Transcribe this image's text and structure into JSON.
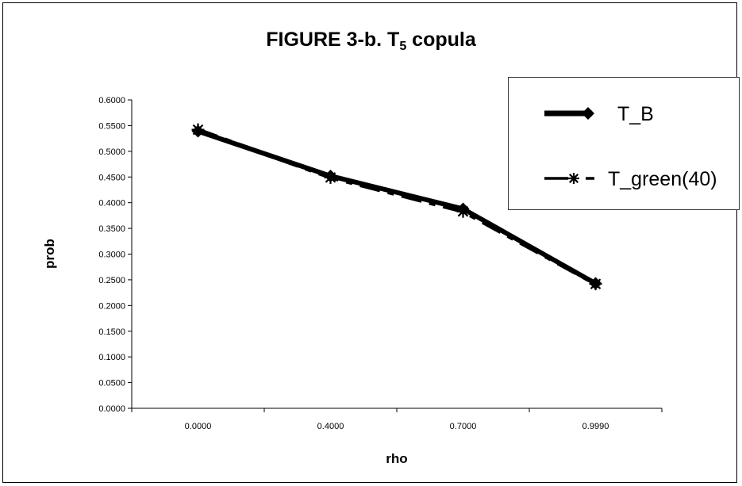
{
  "chart_data": {
    "type": "line",
    "title": "FIGURE 3-b. T",
    "title_subscript": "5",
    "title_suffix": " copula",
    "xlabel": "rho",
    "ylabel": "prob",
    "categories": [
      "0.0000",
      "0.4000",
      "0.7000",
      "0.9990"
    ],
    "ylim": [
      0,
      0.6
    ],
    "yticks": [
      "0.0000",
      "0.0500",
      "0.1000",
      "0.1500",
      "0.2000",
      "0.2500",
      "0.3000",
      "0.3500",
      "0.4000",
      "0.4500",
      "0.5000",
      "0.5500",
      "0.6000"
    ],
    "legend_position": "top-right",
    "grid": false,
    "series": [
      {
        "name": "T_B",
        "values": [
          0.539,
          0.452,
          0.388,
          0.243
        ],
        "marker": "diamond",
        "style": "solid-thick",
        "color": "#000000"
      },
      {
        "name": "T_green(40)",
        "values": [
          0.542,
          0.449,
          0.383,
          0.242
        ],
        "marker": "asterisk",
        "style": "dashed",
        "color": "#000000"
      }
    ]
  }
}
